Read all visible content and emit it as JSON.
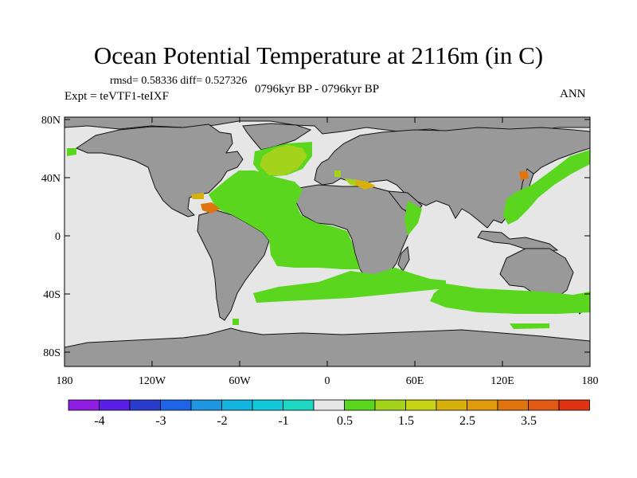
{
  "title": "Ocean Potential Temperature at 2116m (in C)",
  "stats": "rmsd= 0.58336 diff= 0.527326",
  "experiment": "Expt = teVTF1-teIXF",
  "period": "0796kyr BP - 0796kyr BP",
  "season": "ANN",
  "colors": {
    "land": "#999999",
    "no_data": "#e6e6e6",
    "anomaly_0_5_1_0": "#5bd61e",
    "anomaly_1_0_1_5": "#a3d41b",
    "anomaly_2_0_2_5": "#d8b00b",
    "anomaly_3_0_3_5": "#e07510"
  },
  "axes": {
    "lat_labels": [
      "80N",
      "40N",
      "0",
      "40S",
      "80S"
    ],
    "lon_labels": [
      "180",
      "120W",
      "60W",
      "0",
      "60E",
      "120E",
      "180"
    ]
  },
  "colorbar": {
    "colors": [
      "#8f1ee0",
      "#5a1ee6",
      "#2a3ccc",
      "#1e64e6",
      "#1e96e0",
      "#14b4e0",
      "#14c8dc",
      "#1ed7c3",
      "#e6e6e6",
      "#5bd61e",
      "#a3d41b",
      "#c8d214",
      "#d8b00b",
      "#e09a0d",
      "#e07510",
      "#e05a14",
      "#e03214"
    ],
    "labels": [
      "-4",
      "-3",
      "-2",
      "-1",
      "0.5",
      "1.5",
      "2.5",
      "3.5"
    ]
  }
}
